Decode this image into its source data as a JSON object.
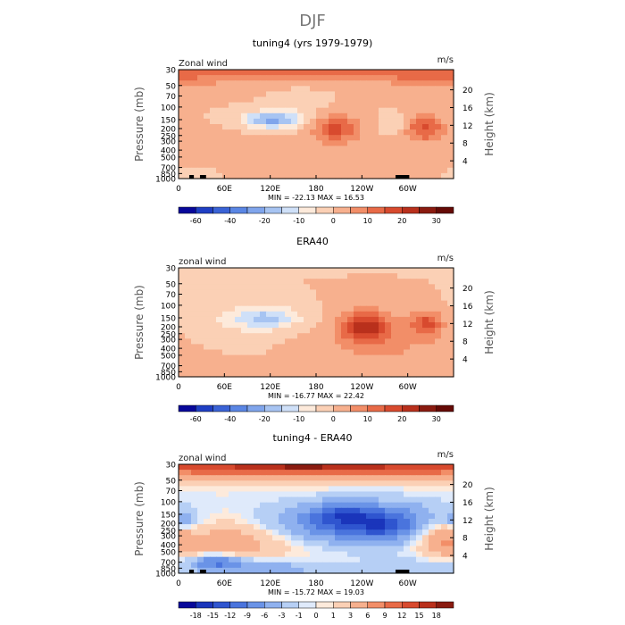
{
  "figure_title": "DJF",
  "chart_data": [
    {
      "type": "heatmap",
      "title": "tuning4 (yrs 1979-1979)",
      "left_label": "Zonal wind",
      "units": "m/s",
      "ylabel": "Pressure (mb)",
      "ylabel_right": "Height (km)",
      "x_ticks": [
        "0",
        "60E",
        "120E",
        "180",
        "120W",
        "60W"
      ],
      "x_tick_lon": [
        0,
        60,
        120,
        180,
        240,
        300
      ],
      "xlim": [
        0,
        360
      ],
      "y_ticks": [
        "30",
        "50",
        "70",
        "100",
        "150",
        "200",
        "250",
        "300",
        "400",
        "500",
        "700",
        "850",
        "1000"
      ],
      "y_tick_p": [
        30,
        50,
        70,
        100,
        150,
        200,
        250,
        300,
        400,
        500,
        700,
        850,
        1000
      ],
      "ylim": [
        30,
        1000
      ],
      "y2_ticks": [
        "4",
        "8",
        "12",
        "16",
        "20"
      ],
      "y2_tick_km": [
        4,
        8,
        12,
        16,
        20
      ],
      "stats": "MIN = -22.13   MAX =  16.53",
      "cbar_levels": [
        -70,
        -60,
        -50,
        -40,
        -30,
        -20,
        -15,
        -10,
        -5,
        0,
        5,
        10,
        15,
        20,
        25,
        30
      ],
      "cbar_labels": [
        "-60",
        "-40",
        "-20",
        "-10",
        "0",
        "10",
        "20",
        "30"
      ],
      "cbar_label_bounds": [
        1,
        3,
        5,
        7,
        9,
        11,
        13,
        15
      ],
      "cbar_colors": [
        "#08089a",
        "#1f3fc4",
        "#3a63d6",
        "#5a86e4",
        "#80a5ec",
        "#a7c4f2",
        "#cfe0f8",
        "#fdeadb",
        "#fbd0b5",
        "#f7b08e",
        "#f28e68",
        "#e86a47",
        "#d84a2e",
        "#b9301c",
        "#8a1b10",
        "#650a06"
      ],
      "features": [
        {
          "lon": 180,
          "p": 30,
          "sx": 150,
          "sy": 0.22,
          "v": 13
        },
        {
          "lon": 345,
          "p": 40,
          "sx": 60,
          "sy": 0.3,
          "v": 8
        },
        {
          "lon": 120,
          "p": 150,
          "sx": 24,
          "sy": 0.18,
          "v": -22
        },
        {
          "lon": 155,
          "p": 130,
          "sx": 25,
          "sy": 0.4,
          "v": -4
        },
        {
          "lon": 205,
          "p": 200,
          "sx": 22,
          "sy": 0.32,
          "v": 17
        },
        {
          "lon": 282,
          "p": 170,
          "sx": 12,
          "sy": 0.2,
          "v": -5
        },
        {
          "lon": 323,
          "p": 200,
          "sx": 18,
          "sy": 0.3,
          "v": 16
        },
        {
          "lon": 100,
          "p": 600,
          "sx": 70,
          "sy": 0.5,
          "v": 4
        },
        {
          "lon": 40,
          "p": 800,
          "sx": 35,
          "sy": 0.25,
          "v": -3
        }
      ],
      "terrain": [
        {
          "lon0": 14,
          "lon1": 20
        },
        {
          "lon0": 28,
          "lon1": 36
        },
        {
          "lon0": 284,
          "lon1": 302
        }
      ]
    },
    {
      "type": "heatmap",
      "title": "ERA40",
      "left_label": "zonal wind",
      "units": "m/s",
      "ylabel": "Pressure (mb)",
      "ylabel_right": "Height (km)",
      "x_ticks": [
        "0",
        "60E",
        "120E",
        "180",
        "120W",
        "60W"
      ],
      "x_tick_lon": [
        0,
        60,
        120,
        180,
        240,
        300
      ],
      "xlim": [
        0,
        360
      ],
      "y_ticks": [
        "30",
        "50",
        "70",
        "100",
        "150",
        "200",
        "250",
        "300",
        "400",
        "500",
        "700",
        "850",
        "1000"
      ],
      "y_tick_p": [
        30,
        50,
        70,
        100,
        150,
        200,
        250,
        300,
        400,
        500,
        700,
        850,
        1000
      ],
      "ylim": [
        30,
        1000
      ],
      "y2_ticks": [
        "4",
        "8",
        "12",
        "16",
        "20"
      ],
      "y2_tick_km": [
        4,
        8,
        12,
        16,
        20
      ],
      "stats": "MIN = -16.77   MAX =  22.42",
      "cbar_levels": [
        -70,
        -60,
        -50,
        -40,
        -30,
        -20,
        -15,
        -10,
        -5,
        0,
        5,
        10,
        15,
        20,
        25,
        30
      ],
      "cbar_labels": [
        "-60",
        "-40",
        "-20",
        "-10",
        "0",
        "10",
        "20",
        "30"
      ],
      "cbar_label_bounds": [
        1,
        3,
        5,
        7,
        9,
        11,
        13,
        15
      ],
      "cbar_colors": [
        "#08089a",
        "#1f3fc4",
        "#3a63d6",
        "#5a86e4",
        "#80a5ec",
        "#a7c4f2",
        "#cfe0f8",
        "#fdeadb",
        "#fbd0b5",
        "#f7b08e",
        "#f28e68",
        "#e86a47",
        "#d84a2e",
        "#b9301c",
        "#8a1b10",
        "#650a06"
      ],
      "features": [
        {
          "lon": 75,
          "p": 30,
          "sx": 50,
          "sy": 0.1,
          "v": -3
        },
        {
          "lon": 115,
          "p": 150,
          "sx": 30,
          "sy": 0.25,
          "v": -16
        },
        {
          "lon": 50,
          "p": 200,
          "sx": 45,
          "sy": 0.45,
          "v": -4
        },
        {
          "lon": 245,
          "p": 200,
          "sx": 24,
          "sy": 0.35,
          "v": 22
        },
        {
          "lon": 325,
          "p": 180,
          "sx": 16,
          "sy": 0.3,
          "v": 16
        },
        {
          "lon": 280,
          "p": 450,
          "sx": 70,
          "sy": 0.6,
          "v": 5
        },
        {
          "lon": 100,
          "p": 900,
          "sx": 80,
          "sy": 0.2,
          "v": 3
        }
      ],
      "terrain": []
    },
    {
      "type": "heatmap",
      "title": "tuning4 - ERA40",
      "left_label": "zonal wind",
      "units": "m/s",
      "ylabel": "Pressure (mb)",
      "ylabel_right": "Height (km)",
      "x_ticks": [
        "0",
        "60E",
        "120E",
        "180",
        "120W",
        "60W"
      ],
      "x_tick_lon": [
        0,
        60,
        120,
        180,
        240,
        300
      ],
      "xlim": [
        0,
        360
      ],
      "y_ticks": [
        "30",
        "50",
        "70",
        "100",
        "150",
        "200",
        "250",
        "300",
        "400",
        "500",
        "700",
        "850",
        "1000"
      ],
      "y_tick_p": [
        30,
        50,
        70,
        100,
        150,
        200,
        250,
        300,
        400,
        500,
        700,
        850,
        1000
      ],
      "ylim": [
        30,
        1000
      ],
      "y2_ticks": [
        "4",
        "8",
        "12",
        "16",
        "20"
      ],
      "y2_tick_km": [
        4,
        8,
        12,
        16,
        20
      ],
      "stats": "MIN = -15.72   MAX =  19.03",
      "cbar_levels": [
        -21,
        -18,
        -15,
        -12,
        -9,
        -6,
        -3,
        -1,
        0,
        1,
        3,
        6,
        9,
        12,
        15,
        18,
        21
      ],
      "cbar_labels": [
        "-18",
        "-15",
        "-12",
        "-9",
        "-6",
        "-3",
        "-1",
        "0",
        "1",
        "3",
        "6",
        "9",
        "12",
        "15",
        "18"
      ],
      "cbar_label_bounds": [
        1,
        2,
        3,
        4,
        5,
        6,
        7,
        8,
        9,
        10,
        11,
        12,
        13,
        14,
        15
      ],
      "cbar_colors": [
        "#08089a",
        "#1a35bb",
        "#2f55cf",
        "#4a74dd",
        "#6a93e7",
        "#8fb1ef",
        "#b6cff5",
        "#dfeafb",
        "#fdeadb",
        "#fbd0b5",
        "#f7b08e",
        "#f28e68",
        "#e86a47",
        "#d84a2e",
        "#b9301c",
        "#8a1b10"
      ],
      "features": [
        {
          "lon": 180,
          "p": 30,
          "sx": 260,
          "sy": 0.3,
          "v": 16
        },
        {
          "lon": 160,
          "p": 30,
          "sx": 60,
          "sy": 0.12,
          "v": 4
        },
        {
          "lon": 240,
          "p": 200,
          "sx": 80,
          "sy": 0.45,
          "v": -12
        },
        {
          "lon": 215,
          "p": 150,
          "sx": 25,
          "sy": 0.25,
          "v": -6
        },
        {
          "lon": 265,
          "p": 220,
          "sx": 25,
          "sy": 0.3,
          "v": -4
        },
        {
          "lon": 75,
          "p": 350,
          "sx": 60,
          "sy": 0.5,
          "v": 5
        },
        {
          "lon": 345,
          "p": 300,
          "sx": 25,
          "sy": 0.45,
          "v": 7
        },
        {
          "lon": 50,
          "p": 700,
          "sx": 25,
          "sy": 0.18,
          "v": -9
        },
        {
          "lon": 5,
          "p": 180,
          "sx": 12,
          "sy": 0.2,
          "v": -5
        },
        {
          "lon": 110,
          "p": 850,
          "sx": 60,
          "sy": 0.2,
          "v": -5
        },
        {
          "lon": 300,
          "p": 850,
          "sx": 40,
          "sy": 0.25,
          "v": -3
        }
      ],
      "terrain": [
        {
          "lon0": 14,
          "lon1": 20
        },
        {
          "lon0": 28,
          "lon1": 36
        },
        {
          "lon0": 284,
          "lon1": 302
        }
      ]
    }
  ]
}
